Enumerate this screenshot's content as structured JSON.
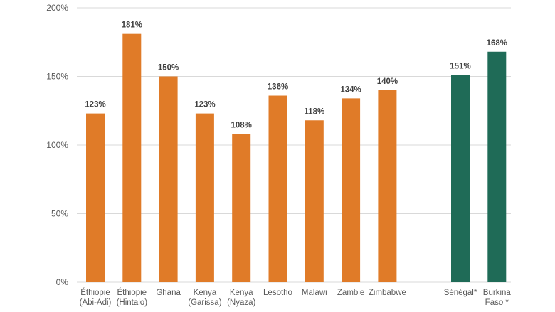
{
  "chart_data": {
    "type": "bar",
    "title": "",
    "xlabel": "",
    "ylabel": "",
    "ylim": [
      0,
      200
    ],
    "yticks": [
      0,
      50,
      100,
      150,
      200
    ],
    "ytick_labels": [
      "0%",
      "50%",
      "100%",
      "150%",
      "200%"
    ],
    "grid": true,
    "legend": "none",
    "categories": [
      {
        "lines": [
          "Éthiopie",
          "(Abi-Adi)"
        ],
        "value": 123,
        "label": "123%",
        "color": "#E07B28"
      },
      {
        "lines": [
          "Éthiopie",
          "(Hintalo)"
        ],
        "value": 181,
        "label": "181%",
        "color": "#E07B28"
      },
      {
        "lines": [
          "Ghana"
        ],
        "value": 150,
        "label": "150%",
        "color": "#E07B28"
      },
      {
        "lines": [
          "Kenya",
          "(Garissa)"
        ],
        "value": 123,
        "label": "123%",
        "color": "#E07B28"
      },
      {
        "lines": [
          "Kenya",
          "(Nyaza)"
        ],
        "value": 108,
        "label": "108%",
        "color": "#E07B28"
      },
      {
        "lines": [
          "Lesotho"
        ],
        "value": 136,
        "label": "136%",
        "color": "#E07B28"
      },
      {
        "lines": [
          "Malawi"
        ],
        "value": 118,
        "label": "118%",
        "color": "#E07B28"
      },
      {
        "lines": [
          "Zambie"
        ],
        "value": 134,
        "label": "134%",
        "color": "#E07B28"
      },
      {
        "lines": [
          "Zimbabwe"
        ],
        "value": 140,
        "label": "140%",
        "color": "#E07B28"
      },
      {
        "lines": [
          ""
        ],
        "value": null,
        "label": "",
        "color": ""
      },
      {
        "lines": [
          "Sénégal*"
        ],
        "value": 151,
        "label": "151%",
        "color": "#1F6B57"
      },
      {
        "lines": [
          "Burkina",
          "Faso *"
        ],
        "value": 168,
        "label": "168%",
        "color": "#1F6B57"
      }
    ]
  }
}
